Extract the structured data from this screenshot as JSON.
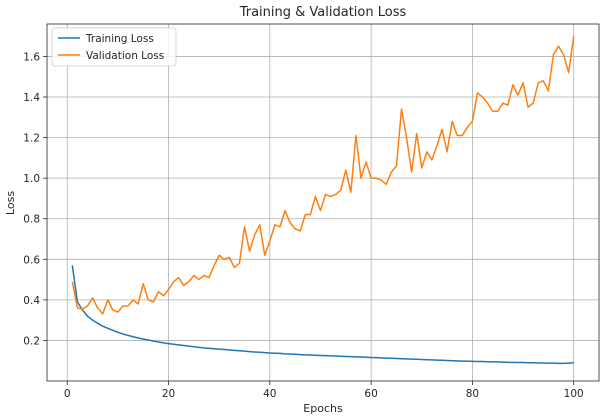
{
  "chart_data": {
    "type": "line",
    "title": "Training & Validation Loss",
    "xlabel": "Epochs",
    "ylabel": "Loss",
    "xlim": [
      -4,
      105
    ],
    "ylim": [
      0.0,
      1.76
    ],
    "xticks": [
      0,
      20,
      40,
      60,
      80,
      100
    ],
    "yticks": [
      0.2,
      0.4,
      0.6,
      0.8,
      1.0,
      1.2,
      1.4,
      1.6
    ],
    "grid": true,
    "legend_position": "top-left",
    "x": [
      1,
      2,
      3,
      4,
      5,
      6,
      7,
      8,
      9,
      10,
      11,
      12,
      13,
      14,
      15,
      16,
      17,
      18,
      19,
      20,
      21,
      22,
      23,
      24,
      25,
      26,
      27,
      28,
      29,
      30,
      31,
      32,
      33,
      34,
      35,
      36,
      37,
      38,
      39,
      40,
      41,
      42,
      43,
      44,
      45,
      46,
      47,
      48,
      49,
      50,
      51,
      52,
      53,
      54,
      55,
      56,
      57,
      58,
      59,
      60,
      61,
      62,
      63,
      64,
      65,
      66,
      67,
      68,
      69,
      70,
      71,
      72,
      73,
      74,
      75,
      76,
      77,
      78,
      79,
      80,
      81,
      82,
      83,
      84,
      85,
      86,
      87,
      88,
      89,
      90,
      91,
      92,
      93,
      94,
      95,
      96,
      97,
      98,
      99,
      100
    ],
    "series": [
      {
        "name": "Training Loss",
        "color": "#1f77b4",
        "values": [
          0.57,
          0.39,
          0.35,
          0.32,
          0.3,
          0.285,
          0.27,
          0.26,
          0.25,
          0.24,
          0.232,
          0.225,
          0.218,
          0.212,
          0.207,
          0.202,
          0.197,
          0.192,
          0.188,
          0.184,
          0.181,
          0.178,
          0.175,
          0.172,
          0.169,
          0.166,
          0.163,
          0.161,
          0.159,
          0.157,
          0.155,
          0.153,
          0.151,
          0.149,
          0.147,
          0.145,
          0.143,
          0.142,
          0.14,
          0.138,
          0.137,
          0.136,
          0.134,
          0.133,
          0.132,
          0.13,
          0.129,
          0.128,
          0.127,
          0.126,
          0.125,
          0.124,
          0.123,
          0.122,
          0.121,
          0.12,
          0.119,
          0.118,
          0.117,
          0.116,
          0.115,
          0.114,
          0.113,
          0.112,
          0.111,
          0.11,
          0.109,
          0.108,
          0.107,
          0.106,
          0.105,
          0.104,
          0.103,
          0.102,
          0.101,
          0.1,
          0.099,
          0.098,
          0.098,
          0.097,
          0.096,
          0.096,
          0.095,
          0.094,
          0.094,
          0.093,
          0.092,
          0.092,
          0.091,
          0.091,
          0.09,
          0.09,
          0.089,
          0.089,
          0.088,
          0.088,
          0.087,
          0.087,
          0.088,
          0.09
        ]
      },
      {
        "name": "Validation Loss",
        "color": "#ff7f0e",
        "values": [
          0.49,
          0.36,
          0.355,
          0.37,
          0.41,
          0.36,
          0.33,
          0.4,
          0.35,
          0.34,
          0.37,
          0.37,
          0.4,
          0.38,
          0.48,
          0.4,
          0.39,
          0.44,
          0.42,
          0.45,
          0.49,
          0.51,
          0.47,
          0.49,
          0.52,
          0.5,
          0.52,
          0.51,
          0.57,
          0.62,
          0.6,
          0.61,
          0.56,
          0.58,
          0.76,
          0.64,
          0.72,
          0.77,
          0.62,
          0.69,
          0.77,
          0.76,
          0.84,
          0.78,
          0.75,
          0.74,
          0.82,
          0.82,
          0.91,
          0.84,
          0.92,
          0.91,
          0.92,
          0.94,
          1.04,
          0.93,
          1.21,
          1.0,
          1.08,
          1.0,
          1.0,
          0.99,
          0.97,
          1.03,
          1.06,
          1.34,
          1.2,
          1.03,
          1.22,
          1.05,
          1.13,
          1.09,
          1.16,
          1.24,
          1.13,
          1.28,
          1.21,
          1.21,
          1.25,
          1.28,
          1.42,
          1.4,
          1.37,
          1.33,
          1.33,
          1.37,
          1.36,
          1.46,
          1.41,
          1.47,
          1.35,
          1.37,
          1.47,
          1.48,
          1.43,
          1.61,
          1.65,
          1.61,
          1.52,
          1.7
        ]
      }
    ]
  }
}
